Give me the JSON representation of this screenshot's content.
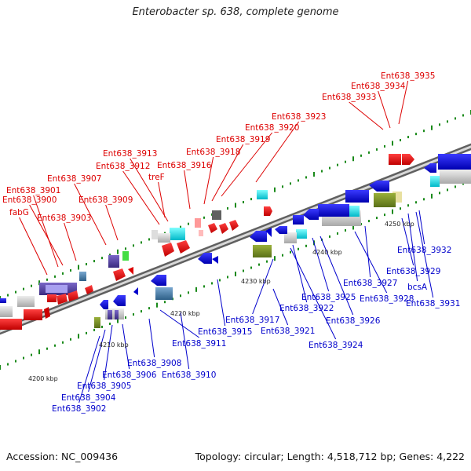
{
  "title": "Enterobacter sp. 638, complete genome",
  "footer": {
    "accession": "Accession: NC_009436",
    "topology": "Topology: circular; Length: 4,518,712 bp; Genes: 4,222"
  },
  "colors": {
    "forward_label": "#dd0000",
    "reverse_label": "#0000cc",
    "backbone": "#909090",
    "tick": "#1a8a1a"
  },
  "scale_labels": [
    "4200 kbp",
    "4210 kbp",
    "4220 kbp",
    "4230 kbp",
    "4240 kbp",
    "4250 kbp"
  ],
  "forward_labels": [
    "Ent638_3935",
    "Ent638_3934",
    "Ent638_3933",
    "Ent638_3923",
    "Ent638_3920",
    "Ent638_3919",
    "Ent638_3918",
    "Ent638_3913",
    "Ent638_3912",
    "Ent638_3916",
    "treF",
    "Ent638_3907",
    "Ent638_3909",
    "Ent638_3901",
    "Ent638_3900",
    "fabG",
    "Ent638_3903"
  ],
  "reverse_labels": [
    "Ent638_3932",
    "Ent638_3929",
    "bcsA",
    "Ent638_3927",
    "Ent638_3928",
    "Ent638_3931",
    "Ent638_3925",
    "Ent638_3922",
    "Ent638_3926",
    "Ent638_3917",
    "Ent638_3915",
    "Ent638_3921",
    "Ent638_3924",
    "Ent638_3911",
    "Ent638_3908",
    "Ent638_3910",
    "Ent638_3906",
    "Ent638_3905",
    "Ent638_3904",
    "Ent638_3902"
  ]
}
